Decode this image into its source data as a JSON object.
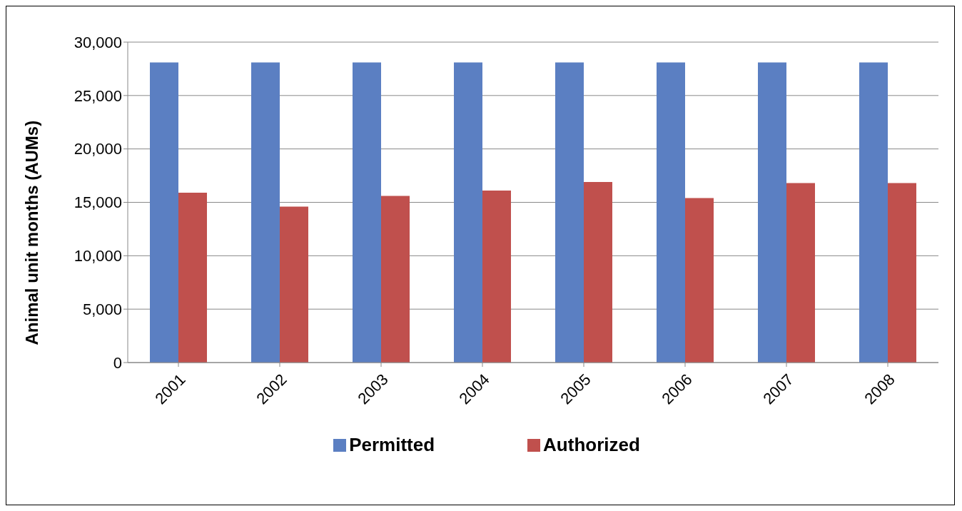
{
  "chart_data": {
    "type": "bar",
    "ylabel": "Animal unit months (AUMs)",
    "categories": [
      "2001",
      "2002",
      "2003",
      "2004",
      "2005",
      "2006",
      "2007",
      "2008"
    ],
    "series": [
      {
        "name": "Permitted",
        "color": "#5b7fc2",
        "values": [
          28100,
          28100,
          28100,
          28100,
          28100,
          28100,
          28100,
          28100
        ]
      },
      {
        "name": "Authorized",
        "color": "#c0504d",
        "values": [
          15900,
          14600,
          15600,
          16100,
          16900,
          15400,
          16800,
          16800
        ]
      }
    ],
    "ylim": [
      0,
      30000
    ],
    "yticks": [
      0,
      {
        "value": 5000,
        "label": "5,000"
      },
      {
        "value": 10000,
        "label": "10,000"
      },
      {
        "value": 15000,
        "label": "15,000"
      },
      {
        "value": 20000,
        "label": "20,000"
      },
      {
        "value": 25000,
        "label": "25,000"
      },
      {
        "value": 30000,
        "label": "30,000"
      }
    ],
    "grid": "y",
    "legend": "bottom"
  }
}
